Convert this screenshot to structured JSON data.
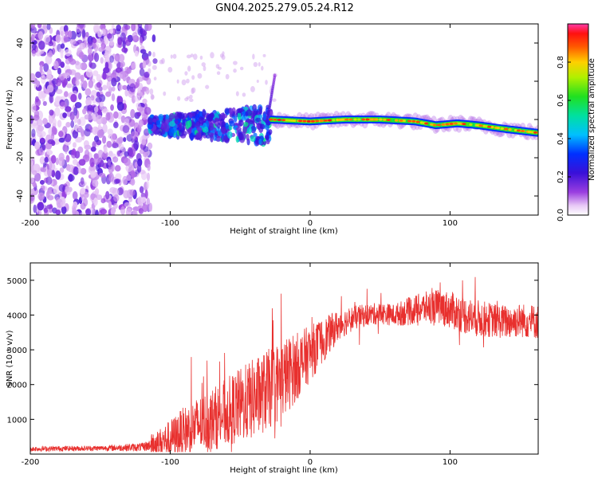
{
  "title": "GN04.2025.279.05.24.R12",
  "chart_data": [
    {
      "type": "heatmap",
      "title": "GN04.2025.279.05.24.R12",
      "xlabel": "Height of straight line (km)",
      "ylabel": "Frequency (Hz)",
      "xlim": [
        -200,
        163
      ],
      "ylim": [
        -50,
        50
      ],
      "x_ticks": [
        "-200",
        "-100",
        "0",
        "100"
      ],
      "y_ticks": [
        "-40",
        "-20",
        "0",
        "20",
        "40"
      ],
      "colorbar": {
        "label": "Normalized spectral amplitude",
        "range": [
          0,
          1
        ],
        "ticks": [
          "0.0",
          "0.2",
          "0.4",
          "0.6",
          "0.8"
        ]
      },
      "features": [
        {
          "name": "noise",
          "x_range": [
            -200,
            -115
          ],
          "amplitude": 0.1
        },
        {
          "name": "emerging-signal",
          "x_range": [
            -115,
            -28
          ],
          "center_hz": -3,
          "amplitude": 0.3
        },
        {
          "name": "main-trace",
          "points": [
            [
              -28,
              0
            ],
            [
              0,
              -1
            ],
            [
              25,
              0
            ],
            [
              50,
              0
            ],
            [
              75,
              -1
            ],
            [
              90,
              -3
            ],
            [
              105,
              -2
            ],
            [
              120,
              -3
            ],
            [
              140,
              -5
            ],
            [
              163,
              -7
            ]
          ],
          "amplitude": 0.85
        }
      ]
    },
    {
      "type": "line",
      "xlabel": "Height of straight line (km)",
      "ylabel": "SNR (10 * v/v)",
      "xlim": [
        -200,
        163
      ],
      "ylim": [
        0,
        5500
      ],
      "x_ticks": [
        "-200",
        "-100",
        "0",
        "100"
      ],
      "y_ticks": [
        "1000",
        "2000",
        "3000",
        "4000",
        "5000"
      ],
      "color": "#e8302e",
      "envelope": {
        "x": [
          -200,
          -150,
          -120,
          -110,
          -100,
          -90,
          -80,
          -70,
          -60,
          -50,
          -40,
          -30,
          -20,
          -10,
          0,
          10,
          20,
          30,
          40,
          50,
          60,
          70,
          80,
          90,
          100,
          110,
          120,
          130,
          140,
          150,
          163
        ],
        "y": [
          150,
          170,
          200,
          300,
          450,
          650,
          850,
          1000,
          1200,
          1400,
          1600,
          1850,
          2150,
          2500,
          2900,
          3300,
          3700,
          3900,
          4000,
          4050,
          4000,
          4100,
          4200,
          4250,
          4150,
          4000,
          3900,
          3850,
          3800,
          3850,
          3800
        ]
      },
      "noise_scale": [
        150,
        150,
        250,
        400,
        600,
        800,
        900,
        1000,
        1100,
        1200,
        1300,
        1300,
        1300,
        1100,
        900,
        700,
        500,
        400,
        350,
        350,
        350,
        450,
        500,
        550,
        600,
        600,
        600,
        550,
        550,
        550,
        550
      ]
    }
  ]
}
